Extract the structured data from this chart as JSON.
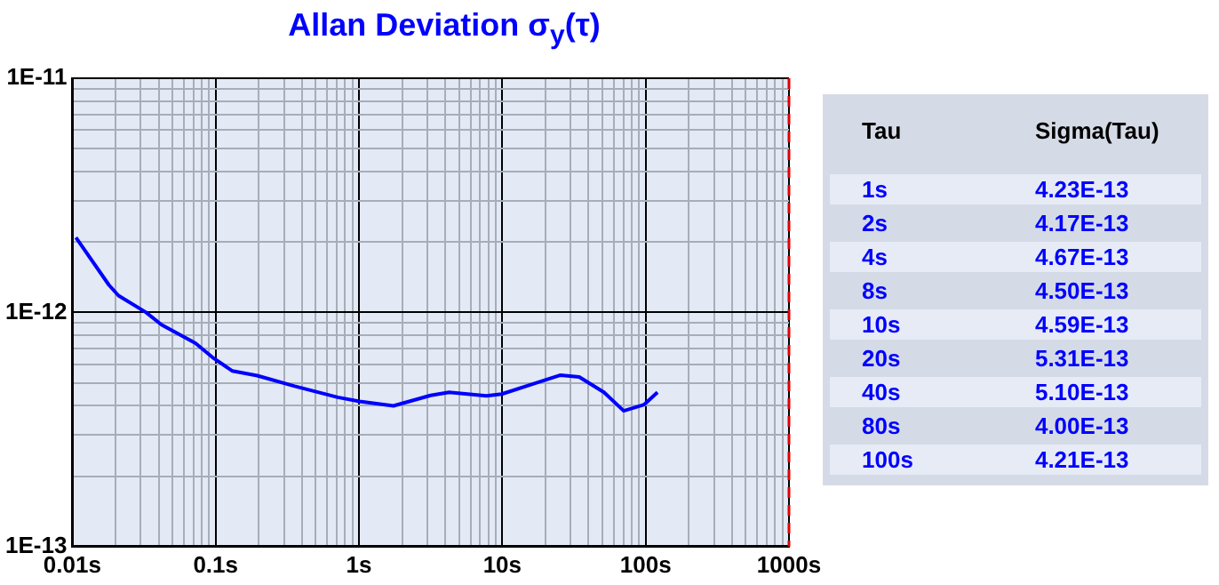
{
  "chart_data": [
    {
      "type": "line",
      "title": "Allan Deviation σ$_{y}$(τ)",
      "log": "xy",
      "grid": true,
      "legend": false,
      "marker": "none",
      "line_style": "solid",
      "xlim": [
        0.01,
        1000
      ],
      "ylim": [
        1e-13,
        1e-11
      ],
      "xticks": [
        {
          "value": 0.01,
          "label": "0.01s"
        },
        {
          "value": 0.02,
          "label": null
        },
        {
          "value": 0.03,
          "label": null
        },
        {
          "value": 0.04,
          "label": null
        },
        {
          "value": 0.05,
          "label": null
        },
        {
          "value": 0.06,
          "label": null
        },
        {
          "value": 0.07,
          "label": null
        },
        {
          "value": 0.08,
          "label": null
        },
        {
          "value": 0.09,
          "label": null
        },
        {
          "value": 0.1,
          "label": "0.1s"
        },
        {
          "value": 0.2,
          "label": null
        },
        {
          "value": 0.3,
          "label": null
        },
        {
          "value": 0.4,
          "label": null
        },
        {
          "value": 0.5,
          "label": null
        },
        {
          "value": 0.6,
          "label": null
        },
        {
          "value": 0.7,
          "label": null
        },
        {
          "value": 0.8,
          "label": null
        },
        {
          "value": 0.9,
          "label": null
        },
        {
          "value": 1,
          "label": "1s"
        },
        {
          "value": 2,
          "label": null
        },
        {
          "value": 3,
          "label": null
        },
        {
          "value": 4,
          "label": null
        },
        {
          "value": 5,
          "label": null
        },
        {
          "value": 6,
          "label": null
        },
        {
          "value": 7,
          "label": null
        },
        {
          "value": 8,
          "label": null
        },
        {
          "value": 9,
          "label": null
        },
        {
          "value": 10,
          "label": "10s"
        },
        {
          "value": 20,
          "label": null
        },
        {
          "value": 30,
          "label": null
        },
        {
          "value": 40,
          "label": null
        },
        {
          "value": 50,
          "label": null
        },
        {
          "value": 60,
          "label": null
        },
        {
          "value": 70,
          "label": null
        },
        {
          "value": 80,
          "label": null
        },
        {
          "value": 90,
          "label": null
        },
        {
          "value": 100,
          "label": "100s"
        },
        {
          "value": 200,
          "label": null
        },
        {
          "value": 300,
          "label": null
        },
        {
          "value": 400,
          "label": null
        },
        {
          "value": 500,
          "label": null
        },
        {
          "value": 600,
          "label": null
        },
        {
          "value": 700,
          "label": null
        },
        {
          "value": 800,
          "label": null
        },
        {
          "value": 900,
          "label": null
        },
        {
          "value": 1000,
          "label": "1000s"
        }
      ],
      "yticks": [
        {
          "value": 1e-13,
          "label": "1E-13"
        },
        {
          "value": 2e-13,
          "label": null
        },
        {
          "value": 3e-13,
          "label": null
        },
        {
          "value": 4e-13,
          "label": null
        },
        {
          "value": 5e-13,
          "label": null
        },
        {
          "value": 6e-13,
          "label": null
        },
        {
          "value": 7e-13,
          "label": null
        },
        {
          "value": 8e-13,
          "label": null
        },
        {
          "value": 9e-13,
          "label": null
        },
        {
          "value": 1e-12,
          "label": "1E-12"
        },
        {
          "value": 2e-12,
          "label": null
        },
        {
          "value": 3e-12,
          "label": null
        },
        {
          "value": 4e-12,
          "label": null
        },
        {
          "value": 5e-12,
          "label": null
        },
        {
          "value": 6e-12,
          "label": null
        },
        {
          "value": 7e-12,
          "label": null
        },
        {
          "value": 8e-12,
          "label": null
        },
        {
          "value": 9e-12,
          "label": null
        },
        {
          "value": 1e-11,
          "label": "1E-11"
        }
      ],
      "series": [
        {
          "color": "#0000ff",
          "x": [
            0.0106,
            0.018,
            0.021,
            0.0327,
            0.0419,
            0.0723,
            0.0973,
            0.131,
            0.195,
            0.356,
            0.711,
            1.01,
            1.74,
            3.16,
            4.26,
            7.74,
            9.9,
            17.1,
            25.5,
            34.4,
            51.2,
            70.3,
            97.7,
            121
          ],
          "values": [
            2.09e-12,
            1.31e-12,
            1.18e-12,
            1e-12,
            8.86e-13,
            7.39e-13,
            6.36e-13,
            5.62e-13,
            5.37e-13,
            4.84e-13,
            4.34e-13,
            4.17e-13,
            3.99e-13,
            4.42e-13,
            4.56e-13,
            4.4e-13,
            4.48e-13,
            4.99e-13,
            5.4e-13,
            5.3e-13,
            4.56e-13,
            3.8e-13,
            4.04e-13,
            4.56e-13
          ]
        }
      ]
    },
    {
      "type": "other",
      "xlabel": "Tau",
      "ylabel": "Sigma(Tau)",
      "categories": [
        "1s",
        "2s",
        "4s",
        "8s",
        "10s",
        "20s",
        "40s",
        "80s",
        "100s"
      ],
      "value_labels": [
        "4.23E-13",
        "4.17E-13",
        "4.67E-13",
        "4.50E-13",
        "4.59E-13",
        "5.31E-13",
        "5.10E-13",
        "4.00E-13",
        "4.21E-13"
      ]
    }
  ]
}
